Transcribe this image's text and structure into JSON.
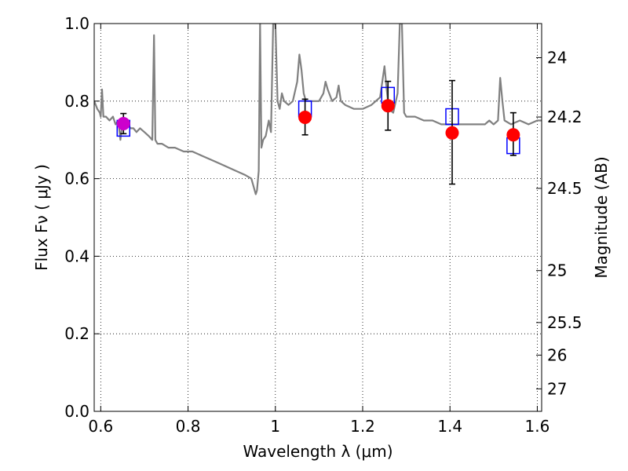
{
  "chart_data": {
    "type": "scatter",
    "xlabel": "Wavelength  λ (μm)",
    "ylabel": "Flux  Fν  ( μJy )",
    "ylabel_right": "Magnitude (AB)",
    "xlim": [
      0.585,
      1.61
    ],
    "ylim": [
      0.0,
      1.0
    ],
    "grid": true,
    "x_ticks": [
      0.6,
      0.8,
      1.0,
      1.2,
      1.4,
      1.6
    ],
    "x_tick_labels": [
      "0.6",
      "0.8",
      "1",
      "1.2",
      "1.4",
      "1.6"
    ],
    "y_ticks": [
      0.0,
      0.2,
      0.4,
      0.6,
      0.8,
      1.0
    ],
    "y_tick_labels": [
      "0.0",
      "0.2",
      "0.4",
      "0.6",
      "0.8",
      "1.0"
    ],
    "right_ticks": [
      {
        "flux": 0.912,
        "label": "24"
      },
      {
        "flux": 0.759,
        "label": "24.2"
      },
      {
        "flux": 0.575,
        "label": "24.5"
      },
      {
        "flux": 0.363,
        "label": "25"
      },
      {
        "flux": 0.229,
        "label": "25.5"
      },
      {
        "flux": 0.145,
        "label": "26"
      },
      {
        "flux": 0.058,
        "label": "27"
      }
    ],
    "colors": {
      "template": "#808080",
      "model": "#0000ff",
      "observed": "#ff0000",
      "optical": "#cc00cc",
      "errorbar": "#000000"
    },
    "series": [
      {
        "role": "template",
        "type": "line",
        "points": [
          [
            0.585,
            0.8
          ],
          [
            0.592,
            0.78
          ],
          [
            0.598,
            0.77
          ],
          [
            0.6,
            0.76
          ],
          [
            0.603,
            0.83
          ],
          [
            0.606,
            0.76
          ],
          [
            0.612,
            0.76
          ],
          [
            0.62,
            0.75
          ],
          [
            0.628,
            0.76
          ],
          [
            0.634,
            0.74
          ],
          [
            0.64,
            0.75
          ],
          [
            0.645,
            0.7
          ],
          [
            0.65,
            0.75
          ],
          [
            0.655,
            0.73
          ],
          [
            0.662,
            0.74
          ],
          [
            0.668,
            0.73
          ],
          [
            0.675,
            0.73
          ],
          [
            0.682,
            0.72
          ],
          [
            0.69,
            0.73
          ],
          [
            0.7,
            0.72
          ],
          [
            0.71,
            0.71
          ],
          [
            0.718,
            0.7
          ],
          [
            0.722,
            0.97
          ],
          [
            0.725,
            0.7
          ],
          [
            0.73,
            0.69
          ],
          [
            0.74,
            0.69
          ],
          [
            0.755,
            0.68
          ],
          [
            0.77,
            0.68
          ],
          [
            0.79,
            0.67
          ],
          [
            0.81,
            0.67
          ],
          [
            0.83,
            0.66
          ],
          [
            0.85,
            0.65
          ],
          [
            0.87,
            0.64
          ],
          [
            0.89,
            0.63
          ],
          [
            0.91,
            0.62
          ],
          [
            0.93,
            0.61
          ],
          [
            0.945,
            0.6
          ],
          [
            0.95,
            0.58
          ],
          [
            0.955,
            0.56
          ],
          [
            0.958,
            0.57
          ],
          [
            0.962,
            0.62
          ],
          [
            0.965,
            1.0
          ],
          [
            0.968,
            0.68
          ],
          [
            0.972,
            0.7
          ],
          [
            0.978,
            0.71
          ],
          [
            0.985,
            0.75
          ],
          [
            0.99,
            0.72
          ],
          [
            0.995,
            1.0
          ],
          [
            1.0,
            1.0
          ],
          [
            1.005,
            0.8
          ],
          [
            1.01,
            0.78
          ],
          [
            1.015,
            0.82
          ],
          [
            1.02,
            0.8
          ],
          [
            1.03,
            0.79
          ],
          [
            1.04,
            0.8
          ],
          [
            1.05,
            0.85
          ],
          [
            1.055,
            0.92
          ],
          [
            1.06,
            0.88
          ],
          [
            1.065,
            0.82
          ],
          [
            1.07,
            0.8
          ],
          [
            1.08,
            0.8
          ],
          [
            1.09,
            0.8
          ],
          [
            1.1,
            0.8
          ],
          [
            1.11,
            0.82
          ],
          [
            1.115,
            0.85
          ],
          [
            1.12,
            0.83
          ],
          [
            1.13,
            0.8
          ],
          [
            1.14,
            0.81
          ],
          [
            1.145,
            0.84
          ],
          [
            1.15,
            0.8
          ],
          [
            1.16,
            0.79
          ],
          [
            1.18,
            0.78
          ],
          [
            1.2,
            0.78
          ],
          [
            1.22,
            0.79
          ],
          [
            1.23,
            0.8
          ],
          [
            1.24,
            0.81
          ],
          [
            1.245,
            0.85
          ],
          [
            1.25,
            0.89
          ],
          [
            1.255,
            0.83
          ],
          [
            1.26,
            0.78
          ],
          [
            1.27,
            0.77
          ],
          [
            1.28,
            0.82
          ],
          [
            1.285,
            1.0
          ],
          [
            1.29,
            1.0
          ],
          [
            1.295,
            0.77
          ],
          [
            1.3,
            0.76
          ],
          [
            1.32,
            0.76
          ],
          [
            1.34,
            0.75
          ],
          [
            1.36,
            0.75
          ],
          [
            1.38,
            0.74
          ],
          [
            1.4,
            0.74
          ],
          [
            1.42,
            0.74
          ],
          [
            1.44,
            0.74
          ],
          [
            1.46,
            0.74
          ],
          [
            1.48,
            0.74
          ],
          [
            1.49,
            0.75
          ],
          [
            1.5,
            0.74
          ],
          [
            1.51,
            0.75
          ],
          [
            1.515,
            0.86
          ],
          [
            1.52,
            0.8
          ],
          [
            1.525,
            0.75
          ],
          [
            1.54,
            0.74
          ],
          [
            1.56,
            0.75
          ],
          [
            1.58,
            0.74
          ],
          [
            1.6,
            0.75
          ],
          [
            1.61,
            0.75
          ]
        ]
      },
      {
        "role": "model",
        "name": "",
        "marker": "open-square",
        "x": [
          0.652,
          1.068,
          1.258,
          1.405,
          1.545
        ],
        "y": [
          0.73,
          0.78,
          0.815,
          0.76,
          0.685
        ]
      },
      {
        "role": "observed",
        "marker": "filled-circle",
        "x": [
          1.068,
          1.258,
          1.405,
          1.545
        ],
        "y": [
          0.758,
          0.788,
          0.718,
          0.713
        ],
        "yerr_low": [
          0.045,
          0.063,
          0.132,
          0.053
        ],
        "yerr_high": [
          0.047,
          0.063,
          0.135,
          0.057
        ]
      },
      {
        "role": "optical",
        "marker": "filled-circle",
        "x": [
          0.652
        ],
        "y": [
          0.742
        ],
        "yerr_low": [
          0.026
        ],
        "yerr_high": [
          0.026
        ]
      }
    ]
  }
}
